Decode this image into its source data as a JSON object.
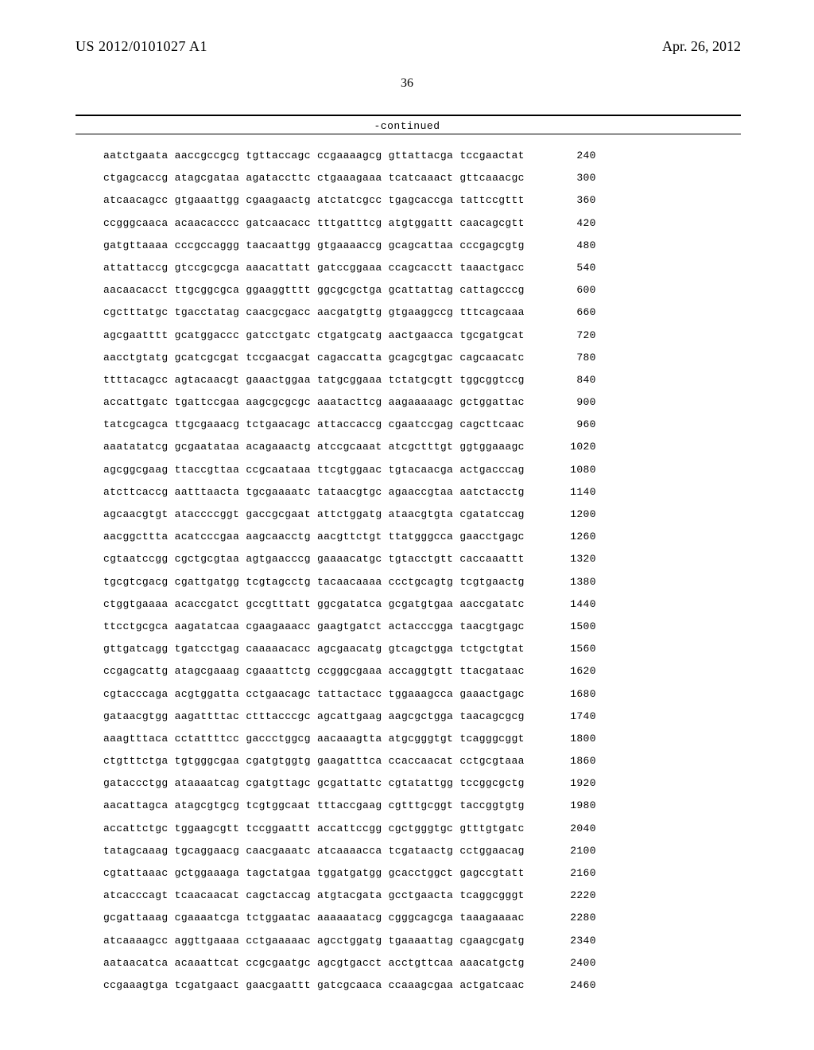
{
  "header": {
    "publication_number": "US 2012/0101027 A1",
    "publication_date": "Apr. 26, 2012",
    "page_number": "36",
    "continued_label": "-continued"
  },
  "sequence": {
    "font_family": "Courier New",
    "font_size_pt": 9,
    "group_gap_chars": 1,
    "rows": [
      {
        "groups": [
          "aatctgaata",
          "aaccgccgcg",
          "tgttaccagc",
          "ccgaaaagcg",
          "gttattacga",
          "tccgaactat"
        ],
        "pos": 240
      },
      {
        "groups": [
          "ctgagcaccg",
          "atagcgataa",
          "agataccttc",
          "ctgaaagaaa",
          "tcatcaaact",
          "gttcaaacgc"
        ],
        "pos": 300
      },
      {
        "groups": [
          "atcaacagcc",
          "gtgaaattgg",
          "cgaagaactg",
          "atctatcgcc",
          "tgagcaccga",
          "tattccgttt"
        ],
        "pos": 360
      },
      {
        "groups": [
          "ccgggcaaca",
          "acaacacccc",
          "gatcaacacc",
          "tttgatttcg",
          "atgtggattt",
          "caacagcgtt"
        ],
        "pos": 420
      },
      {
        "groups": [
          "gatgttaaaa",
          "cccgccaggg",
          "taacaattgg",
          "gtgaaaaccg",
          "gcagcattaa",
          "cccgagcgtg"
        ],
        "pos": 480
      },
      {
        "groups": [
          "attattaccg",
          "gtccgcgcga",
          "aaacattatt",
          "gatccggaaa",
          "ccagcacctt",
          "taaactgacc"
        ],
        "pos": 540
      },
      {
        "groups": [
          "aacaacacct",
          "ttgcggcgca",
          "ggaaggtttt",
          "ggcgcgctga",
          "gcattattag",
          "cattagcccg"
        ],
        "pos": 600
      },
      {
        "groups": [
          "cgctttatgc",
          "tgacctatag",
          "caacgcgacc",
          "aacgatgttg",
          "gtgaaggccg",
          "tttcagcaaa"
        ],
        "pos": 660
      },
      {
        "groups": [
          "agcgaatttt",
          "gcatggaccc",
          "gatcctgatc",
          "ctgatgcatg",
          "aactgaacca",
          "tgcgatgcat"
        ],
        "pos": 720
      },
      {
        "groups": [
          "aacctgtatg",
          "gcatcgcgat",
          "tccgaacgat",
          "cagaccatta",
          "gcagcgtgac",
          "cagcaacatc"
        ],
        "pos": 780
      },
      {
        "groups": [
          "ttttacagcc",
          "agtacaacgt",
          "gaaactggaa",
          "tatgcggaaa",
          "tctatgcgtt",
          "tggcggtccg"
        ],
        "pos": 840
      },
      {
        "groups": [
          "accattgatc",
          "tgattccgaa",
          "aagcgcgcgc",
          "aaatacttcg",
          "aagaaaaagc",
          "gctggattac"
        ],
        "pos": 900
      },
      {
        "groups": [
          "tatcgcagca",
          "ttgcgaaacg",
          "tctgaacagc",
          "attaccaccg",
          "cgaatccgag",
          "cagcttcaac"
        ],
        "pos": 960
      },
      {
        "groups": [
          "aaatatatcg",
          "gcgaatataa",
          "acagaaactg",
          "atccgcaaat",
          "atcgctttgt",
          "ggtggaaagc"
        ],
        "pos": 1020
      },
      {
        "groups": [
          "agcggcgaag",
          "ttaccgttaa",
          "ccgcaataaa",
          "ttcgtggaac",
          "tgtacaacga",
          "actgacccag"
        ],
        "pos": 1080
      },
      {
        "groups": [
          "atcttcaccg",
          "aatttaacta",
          "tgcgaaaatc",
          "tataacgtgc",
          "agaaccgtaa",
          "aatctacctg"
        ],
        "pos": 1140
      },
      {
        "groups": [
          "agcaacgtgt",
          "ataccccggt",
          "gaccgcgaat",
          "attctggatg",
          "ataacgtgta",
          "cgatatccag"
        ],
        "pos": 1200
      },
      {
        "groups": [
          "aacggcttta",
          "acatcccgaa",
          "aagcaacctg",
          "aacgttctgt",
          "ttatgggcca",
          "gaacctgagc"
        ],
        "pos": 1260
      },
      {
        "groups": [
          "cgtaatccgg",
          "cgctgcgtaa",
          "agtgaacccg",
          "gaaaacatgc",
          "tgtacctgtt",
          "caccaaattt"
        ],
        "pos": 1320
      },
      {
        "groups": [
          "tgcgtcgacg",
          "cgattgatgg",
          "tcgtagcctg",
          "tacaacaaaa",
          "ccctgcagtg",
          "tcgtgaactg"
        ],
        "pos": 1380
      },
      {
        "groups": [
          "ctggtgaaaa",
          "acaccgatct",
          "gccgtttatt",
          "ggcgatatca",
          "gcgatgtgaa",
          "aaccgatatc"
        ],
        "pos": 1440
      },
      {
        "groups": [
          "ttcctgcgca",
          "aagatatcaa",
          "cgaagaaacc",
          "gaagtgatct",
          "actacccgga",
          "taacgtgagc"
        ],
        "pos": 1500
      },
      {
        "groups": [
          "gttgatcagg",
          "tgatcctgag",
          "caaaaacacc",
          "agcgaacatg",
          "gtcagctgga",
          "tctgctgtat"
        ],
        "pos": 1560
      },
      {
        "groups": [
          "ccgagcattg",
          "atagcgaaag",
          "cgaaattctg",
          "ccgggcgaaa",
          "accaggtgtt",
          "ttacgataac"
        ],
        "pos": 1620
      },
      {
        "groups": [
          "cgtacccaga",
          "acgtggatta",
          "cctgaacagc",
          "tattactacc",
          "tggaaagcca",
          "gaaactgagc"
        ],
        "pos": 1680
      },
      {
        "groups": [
          "gataacgtgg",
          "aagattttac",
          "ctttacccgc",
          "agcattgaag",
          "aagcgctgga",
          "taacagcgcg"
        ],
        "pos": 1740
      },
      {
        "groups": [
          "aaagtttaca",
          "cctattttcc",
          "gaccctggcg",
          "aacaaagtta",
          "atgcgggtgt",
          "tcagggcggt"
        ],
        "pos": 1800
      },
      {
        "groups": [
          "ctgtttctga",
          "tgtgggcgaa",
          "cgatgtggtg",
          "gaagatttca",
          "ccaccaacat",
          "cctgcgtaaa"
        ],
        "pos": 1860
      },
      {
        "groups": [
          "gataccctgg",
          "ataaaatcag",
          "cgatgttagc",
          "gcgattattc",
          "cgtatattgg",
          "tccggcgctg"
        ],
        "pos": 1920
      },
      {
        "groups": [
          "aacattagca",
          "atagcgtgcg",
          "tcgtggcaat",
          "tttaccgaag",
          "cgtttgcggt",
          "taccggtgtg"
        ],
        "pos": 1980
      },
      {
        "groups": [
          "accattctgc",
          "tggaagcgtt",
          "tccggaattt",
          "accattccgg",
          "cgctgggtgc",
          "gtttgtgatc"
        ],
        "pos": 2040
      },
      {
        "groups": [
          "tatagcaaag",
          "tgcaggaacg",
          "caacgaaatc",
          "atcaaaacca",
          "tcgataactg",
          "cctggaacag"
        ],
        "pos": 2100
      },
      {
        "groups": [
          "cgtattaaac",
          "gctggaaaga",
          "tagctatgaa",
          "tggatgatgg",
          "gcacctggct",
          "gagccgtatt"
        ],
        "pos": 2160
      },
      {
        "groups": [
          "atcacccagt",
          "tcaacaacat",
          "cagctaccag",
          "atgtacgata",
          "gcctgaacta",
          "tcaggcgggt"
        ],
        "pos": 2220
      },
      {
        "groups": [
          "gcgattaaag",
          "cgaaaatcga",
          "tctggaatac",
          "aaaaaatacg",
          "cgggcagcga",
          "taaagaaaac"
        ],
        "pos": 2280
      },
      {
        "groups": [
          "atcaaaagcc",
          "aggttgaaaa",
          "cctgaaaaac",
          "agcctggatg",
          "tgaaaattag",
          "cgaagcgatg"
        ],
        "pos": 2340
      },
      {
        "groups": [
          "aataacatca",
          "acaaattcat",
          "ccgcgaatgc",
          "agcgtgacct",
          "acctgttcaa",
          "aaacatgctg"
        ],
        "pos": 2400
      },
      {
        "groups": [
          "ccgaaagtga",
          "tcgatgaact",
          "gaacgaattt",
          "gatcgcaaca",
          "ccaaagcgaa",
          "actgatcaac"
        ],
        "pos": 2460
      }
    ]
  }
}
